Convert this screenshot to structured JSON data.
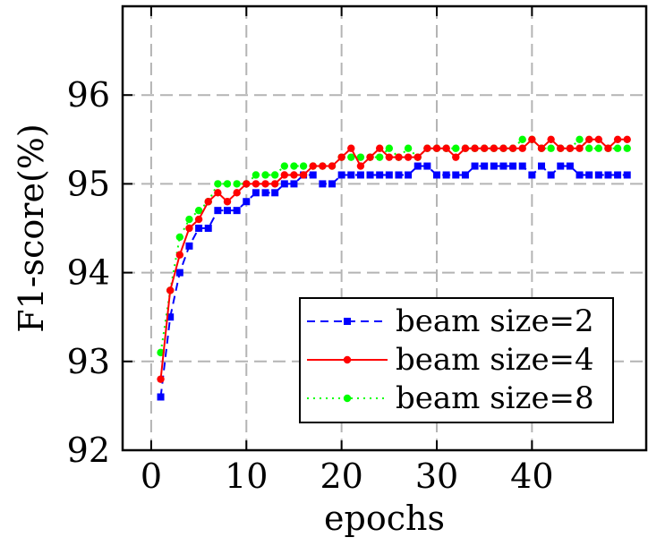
{
  "chart_data": {
    "type": "line",
    "xlabel": "epochs",
    "ylabel": "F1-score(%)",
    "xlim": [
      -3,
      52
    ],
    "ylim": [
      92,
      97
    ],
    "xticks": [
      0,
      10,
      20,
      30,
      40
    ],
    "yticks": [
      92,
      93,
      94,
      95,
      96
    ],
    "grid": "dashed horizontal and vertical",
    "legend_position": "bottom-right",
    "x": [
      1,
      2,
      3,
      4,
      5,
      6,
      7,
      8,
      9,
      10,
      11,
      12,
      13,
      14,
      15,
      16,
      17,
      18,
      19,
      20,
      21,
      22,
      23,
      24,
      25,
      26,
      27,
      28,
      29,
      30,
      31,
      32,
      33,
      34,
      35,
      36,
      37,
      38,
      39,
      40,
      41,
      42,
      43,
      44,
      45,
      46,
      47,
      48,
      49,
      50
    ],
    "series": [
      {
        "name": "beam size=2",
        "color": "#0000ff",
        "line_style": "dashed",
        "marker": "square",
        "values": [
          92.6,
          93.5,
          94.0,
          94.3,
          94.5,
          94.5,
          94.7,
          94.7,
          94.7,
          94.8,
          94.9,
          94.9,
          94.9,
          95.0,
          95.0,
          95.1,
          95.1,
          95.0,
          95.0,
          95.1,
          95.1,
          95.1,
          95.1,
          95.1,
          95.1,
          95.1,
          95.1,
          95.2,
          95.2,
          95.1,
          95.1,
          95.1,
          95.1,
          95.2,
          95.2,
          95.2,
          95.2,
          95.2,
          95.2,
          95.1,
          95.2,
          95.1,
          95.2,
          95.2,
          95.1,
          95.1,
          95.1,
          95.1,
          95.1,
          95.1
        ]
      },
      {
        "name": "beam size=4",
        "color": "#ff0000",
        "line_style": "solid",
        "marker": "circle",
        "values": [
          92.8,
          93.8,
          94.2,
          94.5,
          94.6,
          94.8,
          94.9,
          94.8,
          94.9,
          95.0,
          95.0,
          95.0,
          95.0,
          95.1,
          95.1,
          95.1,
          95.2,
          95.2,
          95.2,
          95.3,
          95.4,
          95.2,
          95.3,
          95.4,
          95.3,
          95.3,
          95.3,
          95.3,
          95.4,
          95.4,
          95.4,
          95.3,
          95.4,
          95.4,
          95.4,
          95.4,
          95.4,
          95.4,
          95.4,
          95.5,
          95.4,
          95.5,
          95.4,
          95.4,
          95.4,
          95.5,
          95.5,
          95.4,
          95.5,
          95.5
        ]
      },
      {
        "name": "beam size=8",
        "color": "#00ff00",
        "line_style": "dotted",
        "marker": "circle",
        "values": [
          93.1,
          93.8,
          94.4,
          94.6,
          94.7,
          94.8,
          95.0,
          95.0,
          95.0,
          95.0,
          95.1,
          95.1,
          95.1,
          95.2,
          95.2,
          95.2,
          95.2,
          95.2,
          95.2,
          95.3,
          95.3,
          95.3,
          95.3,
          95.3,
          95.4,
          95.3,
          95.4,
          95.3,
          95.4,
          95.4,
          95.4,
          95.4,
          95.4,
          95.4,
          95.4,
          95.4,
          95.4,
          95.4,
          95.5,
          95.5,
          95.4,
          95.4,
          95.4,
          95.4,
          95.5,
          95.4,
          95.4,
          95.4,
          95.4,
          95.4
        ]
      }
    ]
  }
}
